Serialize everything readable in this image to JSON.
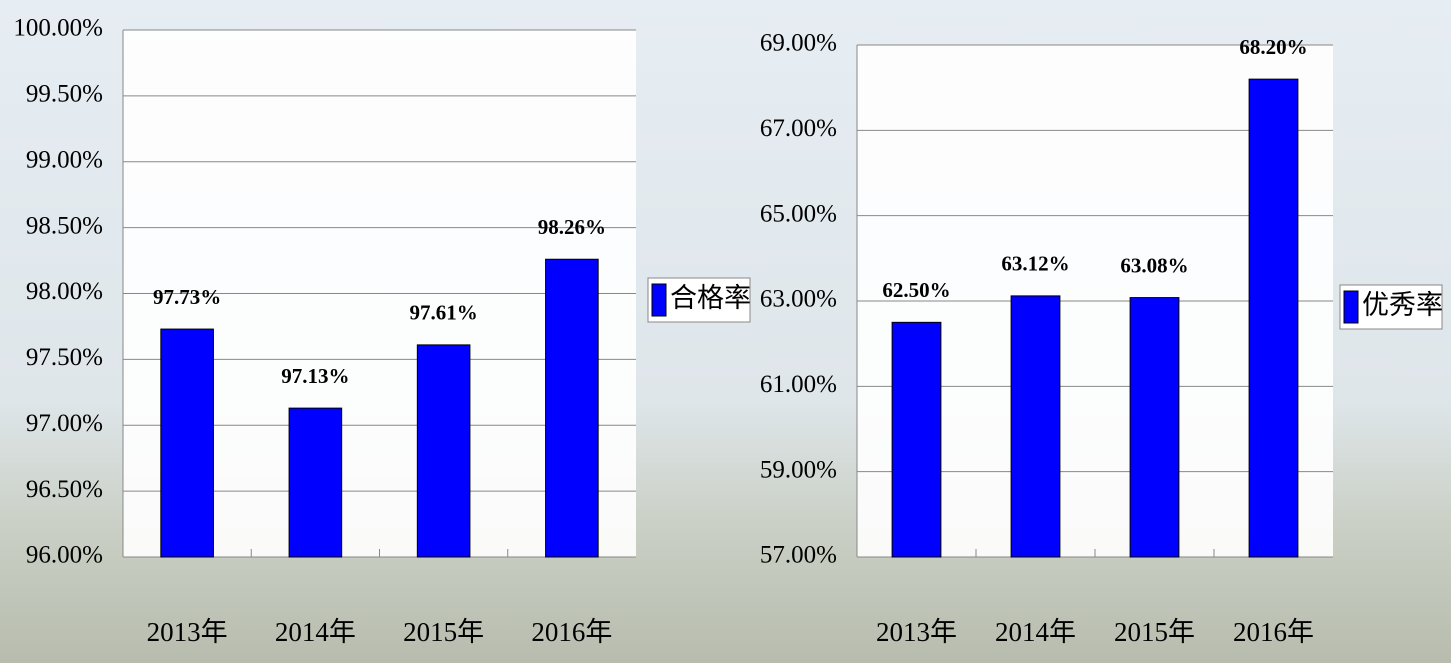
{
  "chart_data": [
    {
      "type": "bar",
      "categories": [
        "2013年",
        "2014年",
        "2015年",
        "2016年"
      ],
      "series": [
        {
          "name": "合格率",
          "color": "#0000ff",
          "values": [
            97.73,
            97.13,
            97.61,
            98.26
          ],
          "value_labels": [
            "97.73%",
            "97.13%",
            "97.61%",
            "98.26%"
          ]
        }
      ],
      "ylim": [
        96,
        100
      ],
      "yticks": [
        {
          "value": 96,
          "label": "96.00%"
        },
        {
          "value": 96.5,
          "label": "96.50%"
        },
        {
          "value": 97,
          "label": "97.00%"
        },
        {
          "value": 97.5,
          "label": "97.50%"
        },
        {
          "value": 98,
          "label": "98.00%"
        },
        {
          "value": 98.5,
          "label": "98.50%"
        },
        {
          "value": 99,
          "label": "99.00%"
        },
        {
          "value": 99.5,
          "label": "99.50%"
        },
        {
          "value": 100,
          "label": "100.00%"
        }
      ],
      "grid": true,
      "legend": "right"
    },
    {
      "type": "bar",
      "categories": [
        "2013年",
        "2014年",
        "2015年",
        "2016年"
      ],
      "series": [
        {
          "name": "优秀率",
          "color": "#0000ff",
          "values": [
            62.5,
            63.12,
            63.08,
            68.2
          ],
          "value_labels": [
            "62.50%",
            "63.12%",
            "63.08%",
            "68.20%"
          ]
        }
      ],
      "ylim": [
        57,
        69
      ],
      "yticks": [
        {
          "value": 57,
          "label": "57.00%"
        },
        {
          "value": 59,
          "label": "59.00%"
        },
        {
          "value": 61,
          "label": "61.00%"
        },
        {
          "value": 63,
          "label": "63.00%"
        },
        {
          "value": 65,
          "label": "65.00%"
        },
        {
          "value": 67,
          "label": "67.00%"
        },
        {
          "value": 69,
          "label": "69.00%"
        }
      ],
      "grid": true,
      "legend": "right"
    }
  ]
}
